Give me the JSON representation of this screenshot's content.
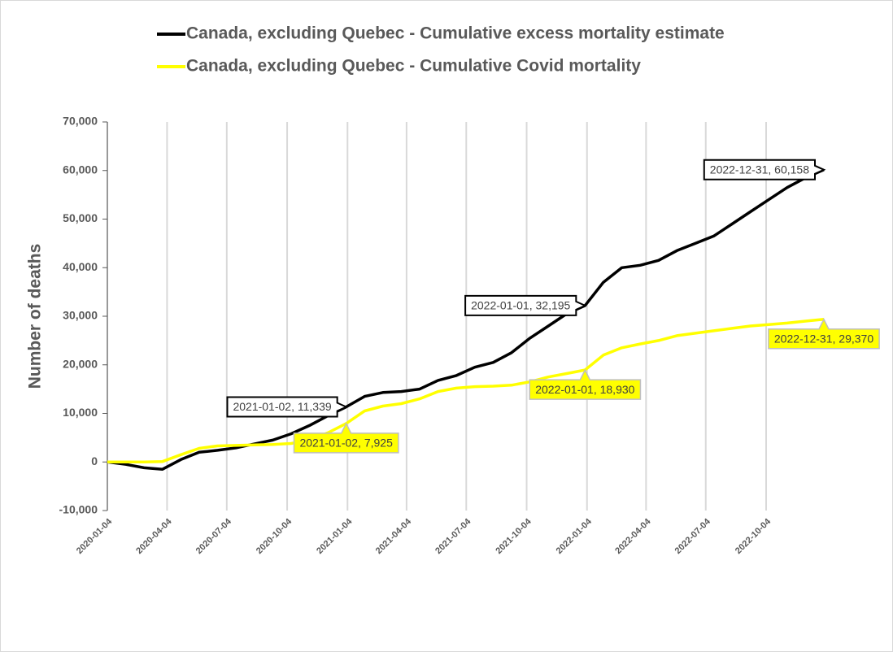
{
  "chart_data": {
    "type": "line",
    "y_label": "Number of deaths",
    "x": [
      "2020-01-04",
      "2020-02-01",
      "2020-02-29",
      "2020-03-28",
      "2020-04-25",
      "2020-05-23",
      "2020-06-20",
      "2020-07-18",
      "2020-08-15",
      "2020-09-12",
      "2020-10-10",
      "2020-11-07",
      "2020-12-05",
      "2021-01-02",
      "2021-01-30",
      "2021-02-27",
      "2021-03-27",
      "2021-04-24",
      "2021-05-22",
      "2021-06-19",
      "2021-07-17",
      "2021-08-14",
      "2021-09-11",
      "2021-10-09",
      "2021-11-06",
      "2021-12-04",
      "2022-01-01",
      "2022-01-29",
      "2022-02-26",
      "2022-03-26",
      "2022-04-23",
      "2022-05-21",
      "2022-06-18",
      "2022-07-16",
      "2022-08-13",
      "2022-09-10",
      "2022-10-08",
      "2022-11-05",
      "2022-12-03",
      "2022-12-31"
    ],
    "series": [
      {
        "name": "Canada, excluding Quebec - Cumulative excess mortality estimate",
        "color": "#000000",
        "values": [
          0,
          -500,
          -1200,
          -1500,
          500,
          2000,
          2400,
          2900,
          3700,
          4500,
          5800,
          7500,
          9500,
          11339,
          13500,
          14300,
          14500,
          15000,
          16800,
          17800,
          19500,
          20500,
          22500,
          25500,
          28000,
          30500,
          32195,
          37000,
          40000,
          40500,
          41500,
          43500,
          45000,
          46500,
          49000,
          51500,
          54000,
          56500,
          58500,
          60158
        ],
        "annotations": [
          {
            "x": "2021-01-02",
            "y": 11339,
            "text": "2021-01-02, 11,339"
          },
          {
            "x": "2022-01-01",
            "y": 32195,
            "text": "2022-01-01, 32,195"
          },
          {
            "x": "2022-12-31",
            "y": 60158,
            "text": "2022-12-31, 60,158"
          }
        ]
      },
      {
        "name": "Canada, excluding Quebec - Cumulative Covid mortality",
        "color": "#ffff00",
        "values": [
          0,
          0,
          0,
          100,
          1500,
          2800,
          3300,
          3400,
          3500,
          3600,
          3800,
          4500,
          6000,
          7925,
          10500,
          11500,
          12000,
          13000,
          14500,
          15200,
          15500,
          15600,
          15800,
          16500,
          17500,
          18200,
          18930,
          22000,
          23500,
          24300,
          25000,
          26000,
          26500,
          27000,
          27500,
          28000,
          28300,
          28600,
          29000,
          29370
        ],
        "annotations": [
          {
            "x": "2021-01-02",
            "y": 7925,
            "text": "2021-01-02, 7,925"
          },
          {
            "x": "2022-01-01",
            "y": 18930,
            "text": "2022-01-01, 18,930"
          },
          {
            "x": "2022-12-31",
            "y": 29370,
            "text": "2022-12-31, 29,370"
          }
        ]
      }
    ],
    "xlim": [
      "2020-01-04",
      "2022-12-31"
    ],
    "xticks": [
      "2020-01-04",
      "2020-04-04",
      "2020-07-04",
      "2020-10-04",
      "2021-01-04",
      "2021-04-04",
      "2021-07-04",
      "2021-10-04",
      "2022-01-04",
      "2022-04-04",
      "2022-07-04",
      "2022-10-04"
    ],
    "ylim": [
      -10000,
      70000
    ],
    "yticks": [
      {
        "value": -10000,
        "label": "-10,000"
      },
      0,
      {
        "value": 10000,
        "label": "10,000"
      },
      {
        "value": 20000,
        "label": "20,000"
      },
      {
        "value": 30000,
        "label": "30,000"
      },
      {
        "value": 40000,
        "label": "40,000"
      },
      {
        "value": 50000,
        "label": "50,000"
      },
      {
        "value": 60000,
        "label": "60,000"
      },
      {
        "value": 70000,
        "label": "70,000"
      }
    ],
    "grid": "x",
    "legend": "top"
  }
}
